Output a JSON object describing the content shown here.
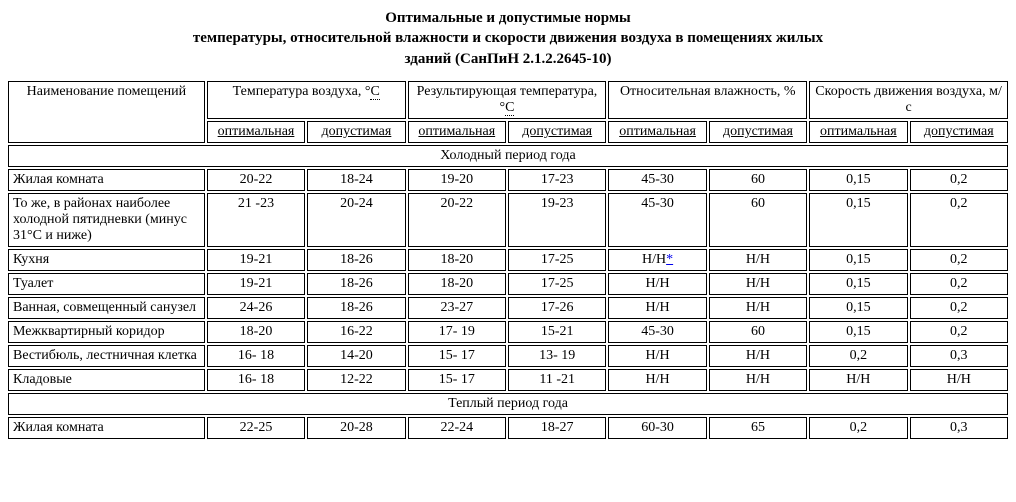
{
  "title_l1": "Оптимальные и допустимые нормы",
  "title_l2": "температуры, относительной влажности и скорости движения воздуха в помещениях жилых",
  "title_l3": "зданий (СанПиН 2.1.2.2645-10)",
  "head": {
    "name": "Наименование помещений",
    "t_air": "Температура воздуха, °",
    "t_res": "Результирующая температура, °",
    "hum": "Относительная влажность, %",
    "vel": "Скорость движения воздуха, м/с",
    "c": "С",
    "opt": "оптимальная",
    "perm": "допустимая"
  },
  "sections": {
    "cold": "Холодный период года",
    "warm": "Теплый период года"
  },
  "rows": [
    {
      "n": "Жилая комната",
      "v": [
        "20-22",
        "18-24",
        "19-20",
        "17-23",
        "45-30",
        "60",
        "0,15",
        "0,2"
      ]
    },
    {
      "n": "То же, в районах наиболее холодной пятидневки (минус 31°С и ниже)",
      "v": [
        "21 -23",
        "20-24",
        "20-22",
        "19-23",
        "45-30",
        "60",
        "0,15",
        "0,2"
      ]
    },
    {
      "n": "Кухня",
      "v": [
        "19-21",
        "18-26",
        "18-20",
        "17-25",
        "Н/Н*",
        "Н/Н",
        "0,15",
        "0,2"
      ],
      "u": [
        4
      ]
    },
    {
      "n": "Туалет",
      "v": [
        "19-21",
        "18-26",
        "18-20",
        "17-25",
        "Н/Н",
        "Н/Н",
        "0,15",
        "0,2"
      ]
    },
    {
      "n": "Ванная, совмещенный санузел",
      "v": [
        "24-26",
        "18-26",
        "23-27",
        "17-26",
        "Н/Н",
        "Н/Н",
        "0,15",
        "0,2"
      ]
    },
    {
      "n": "Межквартирный коридор",
      "v": [
        "18-20",
        "16-22",
        "17- 19",
        "15-21",
        "45-30",
        "60",
        "0,15",
        "0,2"
      ]
    },
    {
      "n": "Вестибюль, лестничная клетка",
      "v": [
        "16- 18",
        "14-20",
        "15- 17",
        "13- 19",
        "Н/Н",
        "Н/Н",
        "0,2",
        "0,3"
      ]
    },
    {
      "n": "Кладовые",
      "v": [
        "16- 18",
        "12-22",
        "15- 17",
        "11 -21",
        "Н/Н",
        "Н/Н",
        "Н/Н",
        "Н/Н"
      ]
    }
  ],
  "warm_rows": [
    {
      "n": "Жилая комната",
      "v": [
        "22-25",
        "20-28",
        "22-24",
        "18-27",
        "60-30",
        "65",
        "0,2",
        "0,3"
      ]
    }
  ]
}
